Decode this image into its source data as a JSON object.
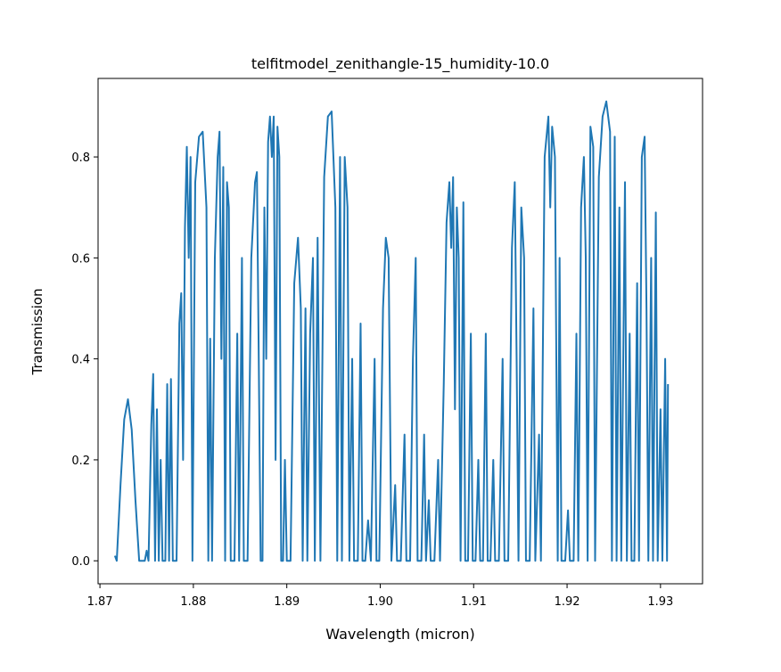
{
  "chart_data": {
    "type": "line",
    "title": "telfitmodel_zenithangle-15_humidity-10.0",
    "xlabel": "Wavelength (micron)",
    "ylabel": "Transmission",
    "color": "#1f77b4",
    "xlim": [
      1.8698,
      1.9345
    ],
    "ylim": [
      -0.0455,
      0.9555
    ],
    "xticks": [
      1.87,
      1.88,
      1.89,
      {
        "value": 1.9,
        "label": "1.90"
      },
      1.91,
      1.92,
      1.93
    ],
    "yticks": [
      {
        "value": 0,
        "label": "0.0"
      },
      0.2,
      0.4,
      0.6,
      0.8
    ],
    "x": [
      1.8716,
      1.8718,
      1.8722,
      1.8726,
      1.873,
      1.8734,
      1.8738,
      1.8742,
      1.8748,
      1.875,
      1.8752,
      1.8755,
      1.8757,
      1.8759,
      1.8761,
      1.8763,
      1.8765,
      1.8767,
      1.877,
      1.8772,
      1.8774,
      1.8776,
      1.8778,
      1.8782,
      1.8785,
      1.8787,
      1.8789,
      1.8791,
      1.8793,
      1.8795,
      1.8797,
      1.8799,
      1.8802,
      1.8806,
      1.881,
      1.8814,
      1.8816,
      1.8818,
      1.882,
      1.8823,
      1.8826,
      1.8828,
      1.883,
      1.8832,
      1.8834,
      1.8836,
      1.8838,
      1.884,
      1.8844,
      1.8847,
      1.8849,
      1.8852,
      1.8854,
      1.8858,
      1.8862,
      1.8866,
      1.8868,
      1.887,
      1.8872,
      1.8874,
      1.8876,
      1.8878,
      1.888,
      1.8882,
      1.8884,
      1.8886,
      1.8888,
      1.889,
      1.8892,
      1.8894,
      1.8896,
      1.8898,
      1.89,
      1.8904,
      1.8908,
      1.8912,
      1.8915,
      1.8917,
      1.892,
      1.8922,
      1.8925,
      1.8928,
      1.893,
      1.8933,
      1.8936,
      1.894,
      1.8944,
      1.8948,
      1.8952,
      1.8954,
      1.8957,
      1.8959,
      1.8962,
      1.8965,
      1.8967,
      1.897,
      1.8972,
      1.8976,
      1.8979,
      1.8981,
      1.8984,
      1.8987,
      1.899,
      1.8994,
      1.8996,
      1.8999,
      1.9003,
      1.9006,
      1.9009,
      1.9012,
      1.9016,
      1.9018,
      1.9022,
      1.9026,
      1.9028,
      1.9032,
      1.9035,
      1.9038,
      1.904,
      1.9044,
      1.9047,
      1.9049,
      1.9052,
      1.9054,
      1.9058,
      1.9062,
      1.9064,
      1.9068,
      1.9071,
      1.9074,
      1.9076,
      1.9078,
      1.908,
      1.9082,
      1.9084,
      1.9086,
      1.9089,
      1.9091,
      1.9094,
      1.9097,
      1.9099,
      1.9102,
      1.9105,
      1.9107,
      1.911,
      1.9113,
      1.9115,
      1.9118,
      1.9121,
      1.9123,
      1.9127,
      1.9131,
      1.9133,
      1.9137,
      1.9141,
      1.9144,
      1.9146,
      1.9148,
      1.9151,
      1.9154,
      1.9156,
      1.916,
      1.9164,
      1.9166,
      1.917,
      1.9172,
      1.9176,
      1.918,
      1.9182,
      1.9184,
      1.9187,
      1.919,
      1.9192,
      1.9194,
      1.9198,
      1.9201,
      1.9203,
      1.9207,
      1.921,
      1.9212,
      1.9215,
      1.9218,
      1.922,
      1.9222,
      1.9225,
      1.9228,
      1.923,
      1.9234,
      1.9238,
      1.9242,
      1.9246,
      1.9248,
      1.9251,
      1.9253,
      1.9256,
      1.9258,
      1.9262,
      1.9264,
      1.9267,
      1.9269,
      1.9272,
      1.9275,
      1.9277,
      1.928,
      1.9283,
      1.9285,
      1.9287,
      1.929,
      1.9292,
      1.9295,
      1.9297,
      1.93,
      1.9302,
      1.9305,
      1.9307,
      1.9308
    ],
    "values": [
      0.01,
      0,
      0.15,
      0.28,
      0.32,
      0.26,
      0.12,
      0,
      0,
      0.02,
      0,
      0.27,
      0.37,
      0,
      0.3,
      0,
      0.2,
      0,
      0,
      0.35,
      0,
      0.36,
      0,
      0,
      0.47,
      0.53,
      0.2,
      0.66,
      0.82,
      0.6,
      0.8,
      0,
      0.75,
      0.84,
      0.85,
      0.7,
      0,
      0.44,
      0,
      0.6,
      0.8,
      0.85,
      0.4,
      0.78,
      0,
      0.75,
      0.7,
      0,
      0,
      0.45,
      0,
      0.6,
      0,
      0,
      0.6,
      0.75,
      0.77,
      0.4,
      0,
      0,
      0.7,
      0.4,
      0.83,
      0.88,
      0.8,
      0.88,
      0.2,
      0.86,
      0.8,
      0,
      0,
      0.2,
      0,
      0,
      0.55,
      0.64,
      0.5,
      0,
      0.5,
      0,
      0.45,
      0.6,
      0,
      0.64,
      0,
      0.76,
      0.88,
      0.89,
      0.7,
      0,
      0.8,
      0,
      0.8,
      0.7,
      0,
      0.4,
      0,
      0,
      0.47,
      0,
      0,
      0.08,
      0,
      0.4,
      0,
      0,
      0.5,
      0.64,
      0.6,
      0,
      0.15,
      0,
      0,
      0.25,
      0,
      0,
      0.4,
      0.6,
      0,
      0,
      0.25,
      0,
      0.12,
      0,
      0,
      0.2,
      0,
      0.35,
      0.67,
      0.75,
      0.62,
      0.76,
      0.3,
      0.7,
      0.6,
      0,
      0.71,
      0,
      0,
      0.45,
      0,
      0,
      0.2,
      0,
      0,
      0.45,
      0,
      0,
      0.2,
      0,
      0,
      0.4,
      0,
      0,
      0.62,
      0.75,
      0.4,
      0,
      0.7,
      0.6,
      0,
      0,
      0.5,
      0,
      0.25,
      0,
      0.8,
      0.88,
      0.7,
      0.86,
      0.8,
      0,
      0.6,
      0,
      0,
      0.1,
      0,
      0,
      0.45,
      0,
      0.7,
      0.8,
      0.6,
      0,
      0.86,
      0.82,
      0,
      0.76,
      0.88,
      0.91,
      0.85,
      0,
      0.84,
      0,
      0.7,
      0,
      0.75,
      0,
      0.45,
      0,
      0,
      0.55,
      0,
      0.8,
      0.84,
      0.5,
      0,
      0.6,
      0,
      0.69,
      0,
      0.3,
      0,
      0.4,
      0,
      0.35
    ]
  }
}
